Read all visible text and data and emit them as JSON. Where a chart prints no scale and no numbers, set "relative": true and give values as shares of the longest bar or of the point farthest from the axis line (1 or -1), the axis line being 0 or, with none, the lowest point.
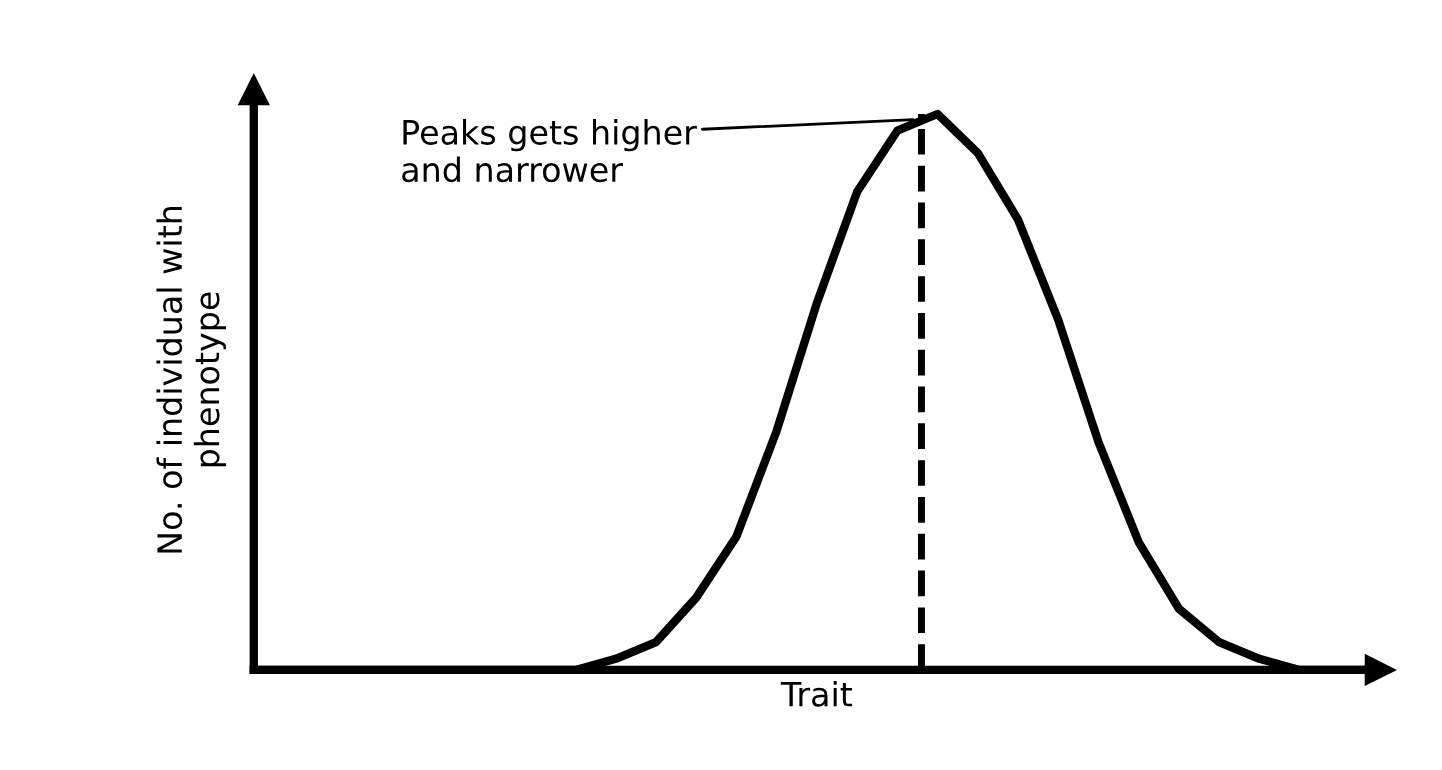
{
  "chart_data": {
    "type": "line",
    "relative": true,
    "xlabel": "Trait",
    "ylabel": "No. of individual with\nphenotype",
    "categories": [
      null,
      null,
      null,
      null,
      null,
      null,
      null,
      null,
      null,
      null,
      null,
      null,
      null,
      null,
      null,
      null,
      null,
      null,
      null,
      null,
      null,
      null,
      null,
      null,
      null,
      null,
      null,
      null,
      null
    ],
    "series": [
      {
        "color": "#000000",
        "values": [
          0,
          0,
          0,
          0,
          0,
          0,
          0,
          0,
          0,
          0.02,
          0.05,
          0.13,
          0.24,
          0.43,
          0.66,
          0.86,
          0.97,
          1.0,
          0.93,
          0.81,
          0.63,
          0.41,
          0.23,
          0.11,
          0.05,
          0.02,
          0,
          0,
          0
        ]
      }
    ],
    "annotations": [
      "Peaks gets higher\nand narrower"
    ],
    "marker": "none",
    "line_style": "solid"
  }
}
